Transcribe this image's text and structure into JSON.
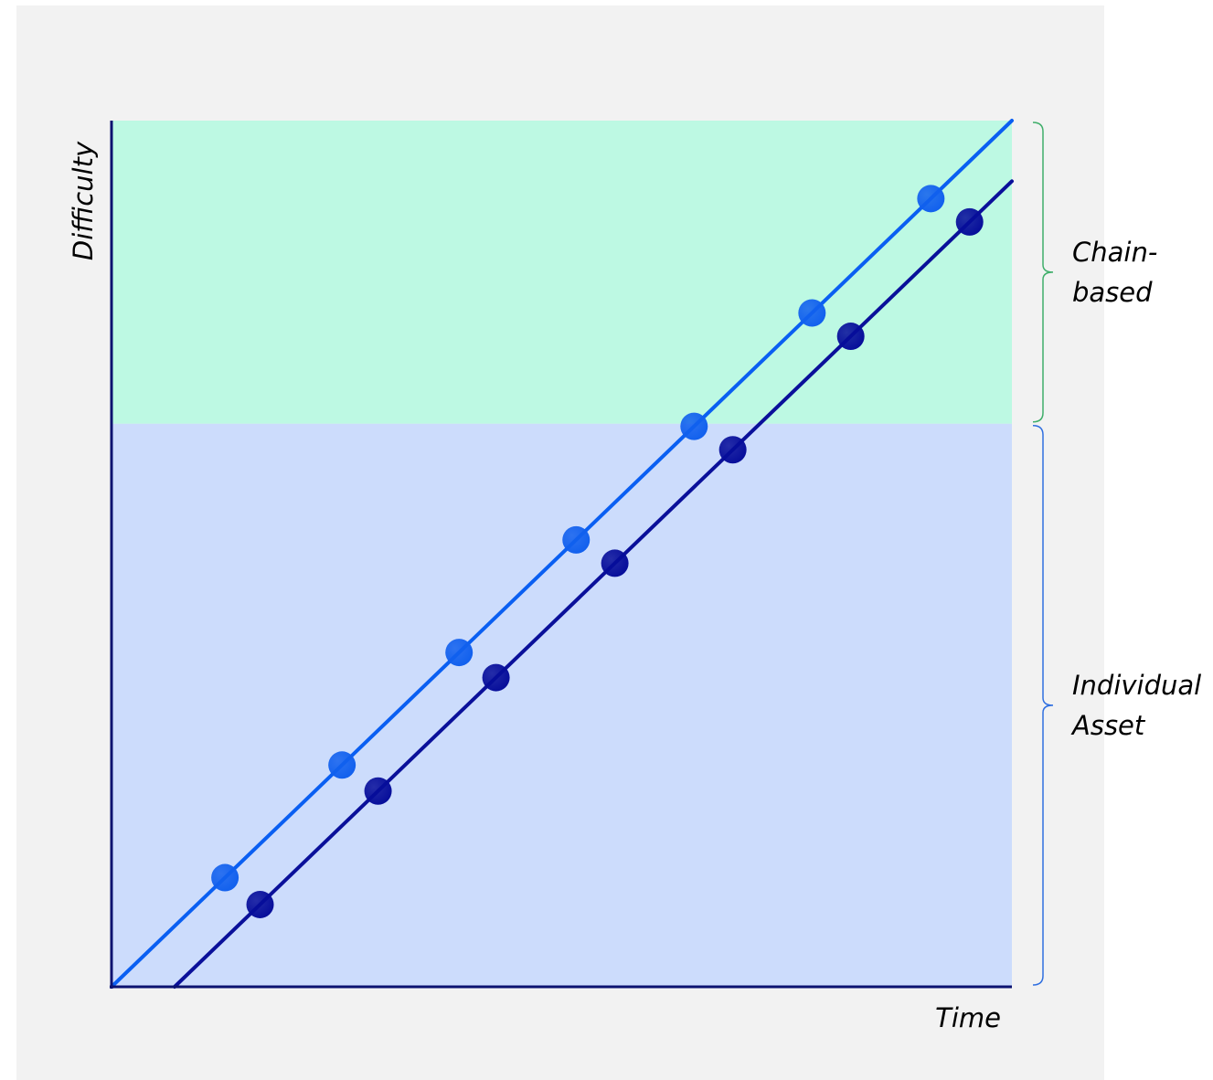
{
  "chart_data": {
    "type": "line",
    "xlabel": "Time",
    "ylabel": "Difficulty",
    "x_ticks": "none",
    "y_ticks": "none",
    "xlim": [
      0,
      100
    ],
    "ylim": [
      0,
      100
    ],
    "grid": false,
    "legend": "none",
    "bands": [
      {
        "label": "Chain-based",
        "label_lines": [
          "Chain-",
          "based"
        ],
        "y_from": 65,
        "y_to": 100,
        "color": "#bdf9e3",
        "brace_color": "#3fae6a"
      },
      {
        "label": "Individual Asset",
        "label_lines": [
          "Individual",
          "Asset"
        ],
        "y_from": 0,
        "y_to": 65,
        "color": "#ccdcfc",
        "brace_color": "#2f6fe0"
      }
    ],
    "series": [
      {
        "color": "#0a5ff2",
        "marker_color": "#1160ee",
        "line": {
          "x": [
            0,
            100
          ],
          "y": [
            0,
            100
          ]
        },
        "points": {
          "x": [
            12.6,
            25.6,
            38.6,
            51.6,
            64.7,
            77.8,
            91.0
          ],
          "y": [
            12.6,
            25.6,
            38.6,
            51.6,
            64.7,
            77.8,
            91.0
          ]
        }
      },
      {
        "color": "#0a109a",
        "marker_color": "#060d9a",
        "line": {
          "x": [
            7.0,
            100
          ],
          "y": [
            0,
            93.0
          ]
        },
        "points": {
          "x": [
            16.5,
            29.6,
            42.7,
            55.9,
            69.0,
            82.1,
            95.3
          ],
          "y": [
            9.5,
            22.6,
            35.7,
            48.9,
            62.0,
            75.1,
            88.3
          ]
        }
      }
    ]
  }
}
